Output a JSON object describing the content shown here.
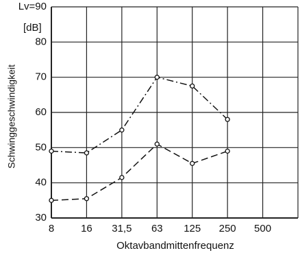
{
  "chart_data": {
    "type": "line",
    "y_label": "Schwinggeschwindigkeit",
    "y_unit": "[dB]",
    "x_label": "Oktavbandmittenfrequenz",
    "categories": [
      "8",
      "16",
      "31,5",
      "63",
      "125",
      "250",
      "500",
      null
    ],
    "series": [
      {
        "color": "#111111",
        "linestyle": "dashdot",
        "values": [
          49,
          48.5,
          55,
          70,
          67.5,
          58,
          null,
          null
        ]
      },
      {
        "color": "#111111",
        "linestyle": "dashed",
        "values": [
          35,
          35.5,
          41.5,
          51,
          45.5,
          49,
          null,
          null
        ]
      }
    ],
    "ylim": [
      30,
      90
    ],
    "yticks": [
      30,
      40,
      50,
      60,
      70,
      80,
      {
        "value": 90,
        "label": "Lv=90"
      }
    ],
    "grid": true
  }
}
